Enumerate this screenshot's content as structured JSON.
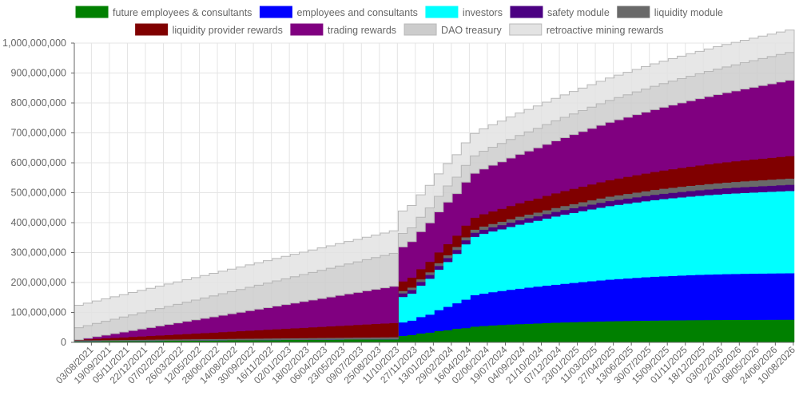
{
  "chart_data": {
    "type": "area",
    "stacked": true,
    "step": true,
    "title": "",
    "xlabel": "",
    "ylabel": "",
    "ylim": [
      0,
      1000000000
    ],
    "yticks": [
      0,
      100000000,
      200000000,
      300000000,
      400000000,
      500000000,
      600000000,
      700000000,
      800000000,
      900000000,
      1000000000
    ],
    "ytick_labels": [
      "0",
      "100,000,000",
      "200,000,000",
      "300,000,000",
      "400,000,000",
      "500,000,000",
      "600,000,000",
      "700,000,000",
      "800,000,000",
      "900,000,000",
      "1,000,000,000"
    ],
    "grid": true,
    "legend_position": "top",
    "x_tick_labels": [
      "03/08/2021",
      "19/09/2021",
      "05/11/2021",
      "22/12/2021",
      "07/02/2022",
      "26/03/2022",
      "12/05/2022",
      "28/06/2022",
      "14/08/2022",
      "30/09/2022",
      "16/11/2022",
      "02/01/2023",
      "18/02/2023",
      "06/04/2023",
      "23/05/2023",
      "09/07/2023",
      "25/08/2023",
      "11/10/2023",
      "27/11/2023",
      "13/01/2024",
      "29/02/2024",
      "16/04/2024",
      "02/06/2024",
      "19/07/2024",
      "04/09/2024",
      "21/10/2024",
      "07/12/2024",
      "23/01/2025",
      "11/03/2025",
      "27/04/2025",
      "13/06/2025",
      "30/07/2025",
      "15/09/2025",
      "01/11/2025",
      "18/12/2025",
      "03/02/2026",
      "22/03/2026",
      "08/05/2026",
      "24/06/2026",
      "10/08/2026"
    ],
    "x": [
      0,
      0.5,
      1,
      1.5,
      2,
      2.5,
      3,
      3.5,
      4,
      4.5,
      5,
      5.5,
      6,
      6.5,
      7,
      7.5,
      8,
      8.5,
      9,
      9.5,
      10,
      10.5,
      11,
      11.5,
      12,
      12.5,
      13,
      13.5,
      14,
      14.5,
      15,
      15.5,
      16,
      16.5,
      17,
      17.5,
      18,
      18.5,
      19,
      19.5,
      20,
      20.5,
      21,
      21.5,
      22,
      22.5,
      23,
      23.5,
      24,
      24.5,
      25,
      25.5,
      26,
      26.5,
      27,
      27.5,
      28,
      28.5,
      29,
      29.5,
      30,
      30.5,
      31,
      31.5,
      32,
      32.5,
      33,
      33.5,
      34,
      34.5,
      35,
      35.5,
      36,
      36.5,
      37,
      37.5,
      38,
      38.5,
      39,
      39.5
    ],
    "series": [
      {
        "name": "future employees & consultants",
        "color": "#008000",
        "values": [
          4000000,
          4200000,
          4400000,
          4600000,
          4800000,
          5000000,
          5200000,
          5400000,
          5600000,
          5800000,
          6000000,
          6200000,
          6400000,
          6600000,
          6800000,
          7000000,
          7200000,
          7400000,
          7600000,
          7800000,
          8000000,
          8200000,
          8400000,
          8600000,
          8800000,
          9000000,
          9200000,
          9400000,
          9600000,
          9800000,
          10000000,
          10200000,
          10400000,
          10600000,
          10800000,
          11000000,
          22000000,
          25000000,
          30000000,
          33000000,
          38000000,
          41000000,
          46000000,
          48000000,
          53000000,
          55000000,
          57000000,
          58500000,
          60000000,
          61200000,
          62400000,
          63600000,
          64800000,
          65900000,
          67000000,
          67900000,
          68800000,
          69500000,
          70200000,
          70800000,
          71400000,
          71900000,
          72400000,
          72800000,
          73200000,
          73600000,
          73900000,
          74200000,
          74500000,
          74700000,
          74900000,
          75100000,
          75300000,
          75400000,
          75500000,
          75600000,
          75700000,
          75800000,
          75900000,
          76000000
        ]
      },
      {
        "name": "employees and consultants",
        "color": "#0000ff",
        "values": [
          0,
          0,
          0,
          0,
          0,
          0,
          0,
          0,
          0,
          0,
          0,
          0,
          0,
          0,
          0,
          0,
          0,
          0,
          0,
          0,
          0,
          0,
          0,
          0,
          0,
          0,
          0,
          0,
          0,
          0,
          0,
          0,
          0,
          0,
          0,
          0,
          45000000,
          48000000,
          55000000,
          60000000,
          70000000,
          78000000,
          85000000,
          95000000,
          105000000,
          108000000,
          111000000,
          113500000,
          116000000,
          118500000,
          121000000,
          123000000,
          125000000,
          127000000,
          129000000,
          131000000,
          133000000,
          135000000,
          137000000,
          139000000,
          140500000,
          142000000,
          143500000,
          145000000,
          146500000,
          147500000,
          148500000,
          149500000,
          150500000,
          151200000,
          151900000,
          152500000,
          153000000,
          153500000,
          154000000,
          154300000,
          154600000,
          154800000,
          155000000,
          155200000
        ]
      },
      {
        "name": "investors",
        "color": "#00ffff",
        "values": [
          0,
          0,
          0,
          0,
          0,
          0,
          0,
          0,
          0,
          0,
          0,
          0,
          0,
          0,
          0,
          0,
          0,
          0,
          0,
          0,
          0,
          0,
          0,
          0,
          0,
          0,
          0,
          0,
          0,
          0,
          0,
          0,
          0,
          0,
          0,
          0,
          85000000,
          90000000,
          105000000,
          120000000,
          135000000,
          150000000,
          165000000,
          185000000,
          195000000,
          200000000,
          203000000,
          206000000,
          210000000,
          214000000,
          217000000,
          220000000,
          224000000,
          228000000,
          231000000,
          234000000,
          237000000,
          240000000,
          243000000,
          246000000,
          248000000,
          250000000,
          252000000,
          254000000,
          256000000,
          258000000,
          259500000,
          261000000,
          262500000,
          264000000,
          265500000,
          266800000,
          268000000,
          269000000,
          270000000,
          271000000,
          272000000,
          273000000,
          274000000,
          275000000
        ]
      },
      {
        "name": "safety module",
        "color": "#4b0082",
        "values": [
          0,
          0,
          0,
          0,
          0,
          0,
          0,
          0,
          0,
          0,
          0,
          0,
          0,
          0,
          0,
          0,
          0,
          0,
          0,
          0,
          0,
          0,
          0,
          0,
          0,
          0,
          0,
          0,
          0,
          0,
          0,
          0,
          0,
          0,
          0,
          0,
          12000000,
          12200000,
          12400000,
          12600000,
          12800000,
          13000000,
          13200000,
          13400000,
          13600000,
          13800000,
          14000000,
          14200000,
          14400000,
          14600000,
          14800000,
          15000000,
          15200000,
          15400000,
          15600000,
          15800000,
          16000000,
          16200000,
          16400000,
          16600000,
          16800000,
          17000000,
          17200000,
          17400000,
          17600000,
          17800000,
          18000000,
          18200000,
          18400000,
          18600000,
          18800000,
          19000000,
          19200000,
          19400000,
          19600000,
          19800000,
          20000000,
          20200000,
          20400000,
          20600000
        ]
      },
      {
        "name": "liquidity module",
        "color": "#696969",
        "values": [
          3000000,
          3100000,
          3200000,
          3300000,
          3400000,
          3500000,
          3600000,
          3700000,
          3800000,
          3900000,
          4000000,
          4100000,
          4200000,
          4300000,
          4400000,
          4500000,
          4600000,
          4700000,
          4800000,
          4900000,
          5000000,
          5100000,
          5200000,
          5300000,
          5400000,
          5500000,
          5600000,
          5700000,
          5800000,
          5900000,
          6000000,
          6100000,
          6200000,
          6300000,
          6400000,
          6500000,
          8000000,
          8300000,
          8600000,
          8900000,
          9200000,
          9500000,
          9800000,
          10100000,
          10400000,
          10700000,
          11000000,
          11300000,
          11600000,
          11900000,
          12200000,
          12500000,
          12800000,
          13100000,
          13400000,
          13700000,
          14000000,
          14300000,
          14600000,
          14900000,
          15200000,
          15500000,
          15800000,
          16100000,
          16400000,
          16700000,
          17000000,
          17300000,
          17600000,
          17900000,
          18200000,
          18500000,
          18800000,
          19100000,
          19400000,
          19700000,
          20000000,
          20300000,
          20600000,
          20900000
        ]
      },
      {
        "name": "liquidity provider rewards",
        "color": "#800000",
        "values": [
          2000000,
          3300000,
          4600000,
          5900000,
          7200000,
          8500000,
          9800000,
          11100000,
          12400000,
          13700000,
          15000000,
          16300000,
          17600000,
          18900000,
          20200000,
          21500000,
          22800000,
          24100000,
          25400000,
          26700000,
          28000000,
          29300000,
          30600000,
          31900000,
          33200000,
          34500000,
          35800000,
          37100000,
          38400000,
          39700000,
          41000000,
          42300000,
          43600000,
          44900000,
          46200000,
          47500000,
          32000000,
          33000000,
          34000000,
          35000000,
          36000000,
          37000000,
          38000000,
          39000000,
          40000000,
          41000000,
          42000000,
          43000000,
          44000000,
          45000000,
          46000000,
          47000000,
          48000000,
          49000000,
          50000000,
          51000000,
          52000000,
          53000000,
          54000000,
          55000000,
          56000000,
          57000000,
          58000000,
          59000000,
          60000000,
          61000000,
          62000000,
          63000000,
          64000000,
          65000000,
          66000000,
          67000000,
          68000000,
          69000000,
          70000000,
          71000000,
          72000000,
          73000000,
          74000000,
          75000000
        ]
      },
      {
        "name": "trading rewards",
        "color": "#800080",
        "values": [
          0,
          3500000,
          7000000,
          10500000,
          14000000,
          17500000,
          21000000,
          24500000,
          28000000,
          31500000,
          35000000,
          38500000,
          42000000,
          45500000,
          49000000,
          52500000,
          56000000,
          59500000,
          63000000,
          66500000,
          70000000,
          73500000,
          77000000,
          80500000,
          84000000,
          87500000,
          91000000,
          94500000,
          98000000,
          101500000,
          105000000,
          108500000,
          112000000,
          115500000,
          119000000,
          122500000,
          115000000,
          120000000,
          125000000,
          130000000,
          135000000,
          140000000,
          140000000,
          145000000,
          148000000,
          151000000,
          154000000,
          157000000,
          160000000,
          163000000,
          166000000,
          169000000,
          172000000,
          175000000,
          178000000,
          181000000,
          184000000,
          187000000,
          190000000,
          193000000,
          196000000,
          199000000,
          202000000,
          205000000,
          208000000,
          211000000,
          214000000,
          217000000,
          220000000,
          223000000,
          226000000,
          229000000,
          232000000,
          235000000,
          238000000,
          241000000,
          244000000,
          247000000,
          250000000,
          253000000
        ]
      },
      {
        "name": "DAO treasury",
        "color": "#cccccc",
        "values": [
          40000000,
          42000000,
          44000000,
          46000000,
          48000000,
          50000000,
          52000000,
          54000000,
          56000000,
          58000000,
          60000000,
          62000000,
          64000000,
          66000000,
          68000000,
          70000000,
          72000000,
          74000000,
          76000000,
          78000000,
          80000000,
          82000000,
          84000000,
          86000000,
          88000000,
          90000000,
          92000000,
          94000000,
          96000000,
          98000000,
          100000000,
          102000000,
          104000000,
          106000000,
          108000000,
          110000000,
          45000000,
          46000000,
          48000000,
          50000000,
          52000000,
          54000000,
          55000000,
          56000000,
          58000000,
          59000000,
          60000000,
          61000000,
          62000000,
          63000000,
          64000000,
          65000000,
          66000000,
          67000000,
          68000000,
          69000000,
          70000000,
          71000000,
          72000000,
          73000000,
          74000000,
          75000000,
          76000000,
          77000000,
          78000000,
          79000000,
          80000000,
          81000000,
          82000000,
          83000000,
          84000000,
          85000000,
          86000000,
          87000000,
          88000000,
          89000000,
          90000000,
          91000000,
          92000000,
          93000000
        ]
      },
      {
        "name": "retroactive mining rewards",
        "color": "#e3e3e3",
        "values": [
          75000000,
          75000000,
          75000000,
          75000000,
          75000000,
          75000000,
          75000000,
          75000000,
          75000000,
          75000000,
          75000000,
          75000000,
          75000000,
          75000000,
          75000000,
          75000000,
          75000000,
          75000000,
          75000000,
          75000000,
          75000000,
          75000000,
          75000000,
          75000000,
          75000000,
          75000000,
          75000000,
          75000000,
          75000000,
          75000000,
          75000000,
          75000000,
          75000000,
          75000000,
          75000000,
          75000000,
          75000000,
          75000000,
          75000000,
          75000000,
          75000000,
          75000000,
          75000000,
          75000000,
          75000000,
          75000000,
          75000000,
          75000000,
          75000000,
          75000000,
          75000000,
          75000000,
          75000000,
          75000000,
          75000000,
          75000000,
          75000000,
          75000000,
          75000000,
          75000000,
          75000000,
          75000000,
          75000000,
          75000000,
          75000000,
          75000000,
          75000000,
          75000000,
          75000000,
          75000000,
          75000000,
          75000000,
          75000000,
          75000000,
          75000000,
          75000000,
          75000000,
          75000000,
          75000000,
          75000000
        ]
      }
    ]
  }
}
